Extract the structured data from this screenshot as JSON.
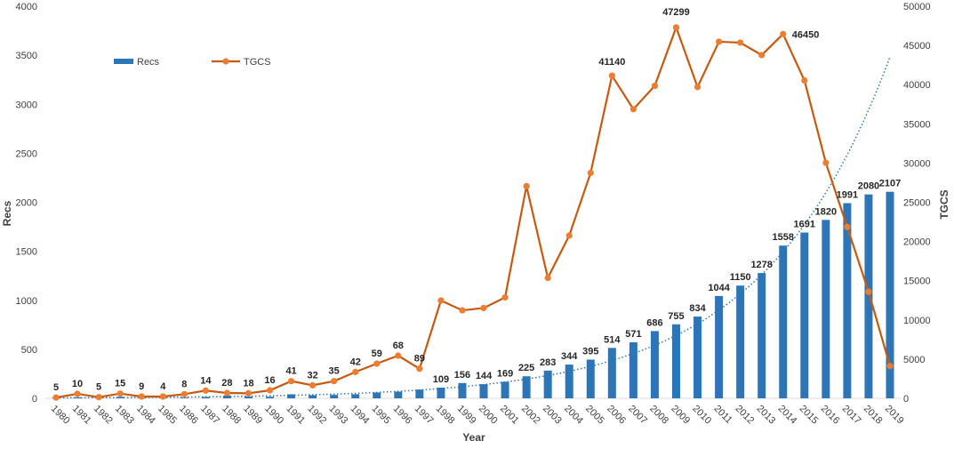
{
  "chart_data": {
    "type": "bar+line",
    "xlabel": "Year",
    "ylabel_left": "Recs",
    "ylabel_right": "TGCS",
    "ylim_left": [
      0,
      4000
    ],
    "ylim_right": [
      0,
      50000
    ],
    "yticks_left": [
      0,
      500,
      1000,
      1500,
      2000,
      2500,
      3000,
      3500,
      4000
    ],
    "yticks_right": [
      0,
      5000,
      10000,
      15000,
      20000,
      25000,
      30000,
      35000,
      40000,
      45000,
      50000
    ],
    "grid": false,
    "legend_placement": "top-left",
    "categories": [
      "1980",
      "1981",
      "1982",
      "1983",
      "1984",
      "1985",
      "1986",
      "1987",
      "1988",
      "1989",
      "1990",
      "1991",
      "1992",
      "1993",
      "1994",
      "1995",
      "1996",
      "1997",
      "1998",
      "1999",
      "2000",
      "2001",
      "2002",
      "2003",
      "2004",
      "2005",
      "2006",
      "2007",
      "2008",
      "2009",
      "2010",
      "2011",
      "2012",
      "2013",
      "2014",
      "2015",
      "2016",
      "2017",
      "2018",
      "2019"
    ],
    "series": [
      {
        "name": "Recs",
        "type": "bar",
        "axis": "left",
        "color": "#2e75b6",
        "values": [
          5,
          10,
          5,
          15,
          9,
          4,
          8,
          14,
          28,
          18,
          16,
          41,
          32,
          35,
          42,
          59,
          68,
          89,
          109,
          156,
          144,
          169,
          225,
          283,
          344,
          395,
          514,
          571,
          686,
          755,
          834,
          1044,
          1150,
          1278,
          1558,
          1691,
          1820,
          1991,
          2080,
          2107
        ],
        "trendline": "exponential",
        "trendline_color": "#2e75b6"
      },
      {
        "name": "TGCS",
        "type": "line",
        "axis": "right",
        "color": "#c55a11",
        "marker_color": "#ed7d31",
        "values": [
          100,
          570,
          150,
          600,
          230,
          230,
          530,
          990,
          680,
          640,
          1020,
          2190,
          1660,
          2190,
          3360,
          4420,
          5440,
          3780,
          12470,
          11220,
          11510,
          12870,
          27060,
          15360,
          20750,
          28750,
          41140,
          36870,
          39850,
          47299,
          39700,
          45470,
          45360,
          43770,
          46450,
          40530,
          30040,
          21850,
          13580,
          4110
        ],
        "labeled_points": {
          "2006": "41140",
          "2009": "47299",
          "2014": "46450"
        }
      }
    ]
  }
}
